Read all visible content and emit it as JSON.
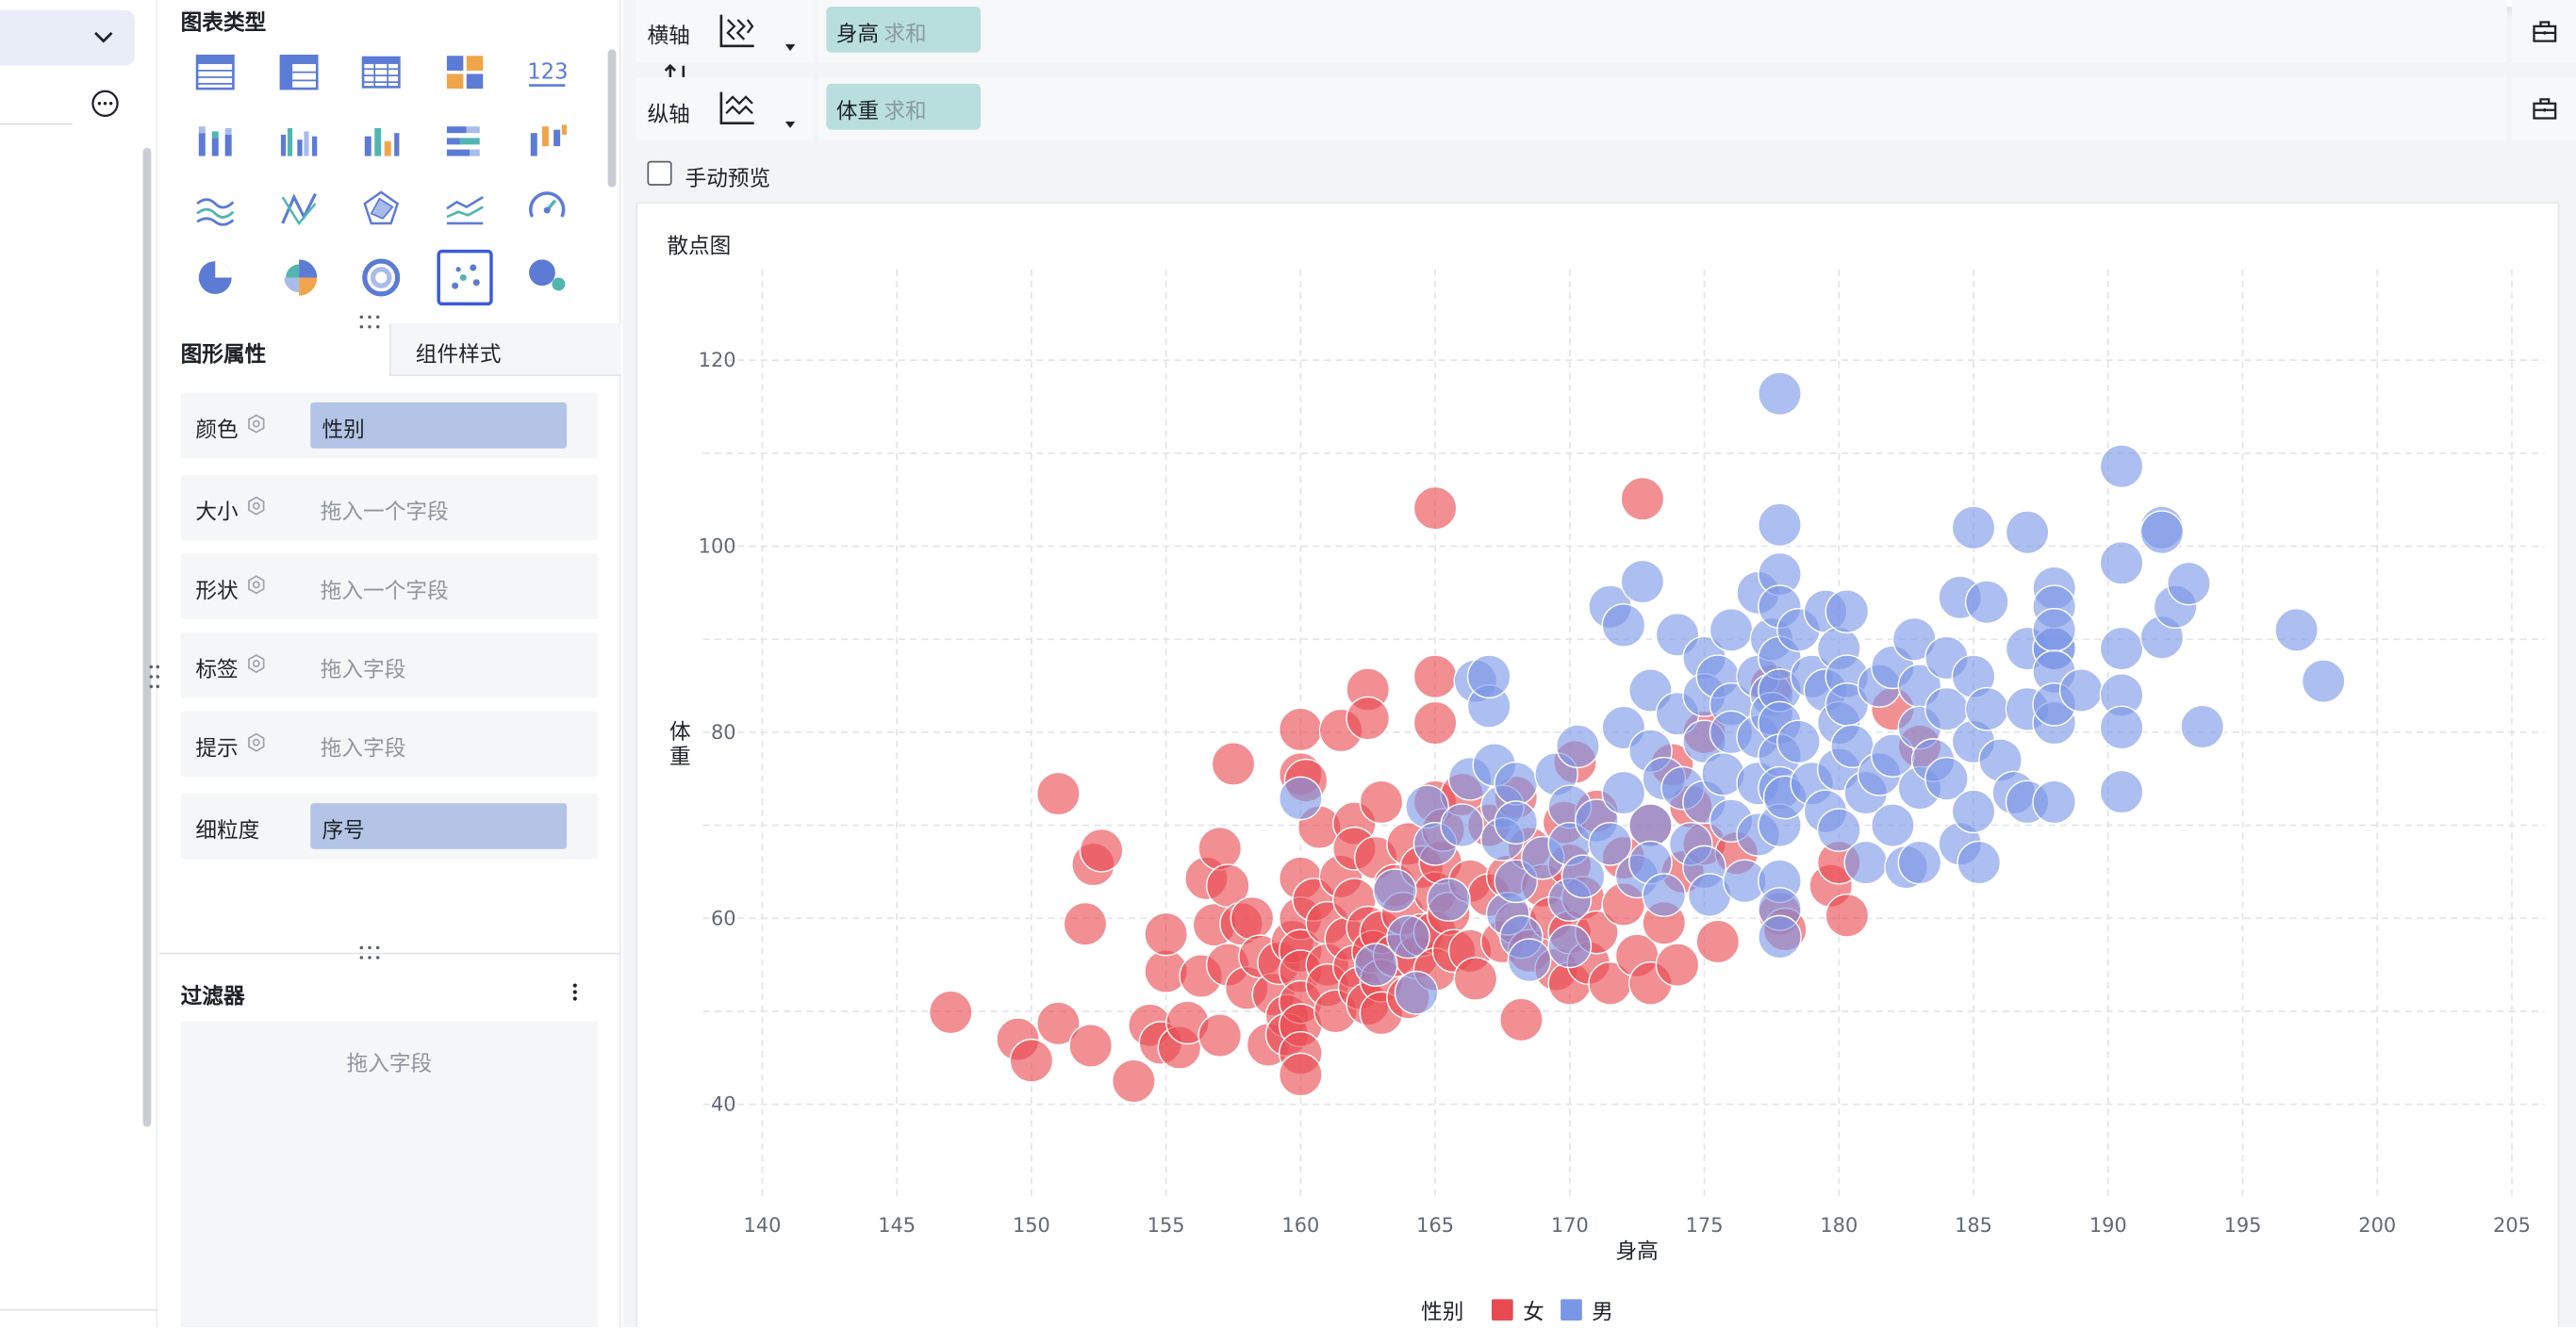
{
  "config": {
    "chart_types_title": "图表类型",
    "tab_shape": "图形属性",
    "tab_style": "组件样式",
    "props": [
      {
        "label": "颜色",
        "value": "性别"
      },
      {
        "label": "大小",
        "placeholder": "拖入一个字段"
      },
      {
        "label": "形状",
        "placeholder": "拖入一个字段"
      },
      {
        "label": "标签",
        "placeholder": "拖入字段"
      },
      {
        "label": "提示",
        "placeholder": "拖入字段"
      },
      {
        "label": "细粒度",
        "value": "序号"
      }
    ],
    "filter_title": "过滤器",
    "filter_placeholder": "拖入字段",
    "chart_type_icons": [
      "table-icon",
      "cross-table-icon",
      "detail-table-icon",
      "kpi-grid-icon",
      "number-123-icon",
      "stacked-column-icon",
      "grouped-column-icon",
      "column-icon",
      "stacked-bar-icon",
      "range-column-icon",
      "area-line-icon",
      "radar-line-icon",
      "radar-icon",
      "multi-line-icon",
      "gauge-icon",
      "pie-icon",
      "rose-pie-icon",
      "ring-icon",
      "scatter-icon",
      "bubble-icon"
    ]
  },
  "axes": {
    "x_label": "横轴",
    "y_label": "纵轴",
    "x_field": "身高",
    "x_agg": "求和",
    "y_field": "体重",
    "y_agg": "求和"
  },
  "preview_label": "手动预览",
  "colors": {
    "female": "#e84a51",
    "male": "#7b96e6",
    "accent": "#3b5bdb"
  },
  "chart_data": {
    "type": "scatter",
    "title": "散点图",
    "xlabel": "身高",
    "ylabel": "体重",
    "xlim": [
      140,
      205
    ],
    "ylim": [
      30,
      125
    ],
    "xticks": [
      140,
      145,
      150,
      155,
      160,
      165,
      170,
      175,
      180,
      185,
      190,
      195,
      200,
      205
    ],
    "yticks": [
      40,
      60,
      80,
      100,
      120
    ],
    "legend_title": "性别",
    "legend_position": "bottom",
    "grid": true,
    "series": [
      {
        "name": "女",
        "color": "#e84a51",
        "points": [
          [
            147.0,
            49.9
          ],
          [
            149.5,
            47.0
          ],
          [
            150.0,
            44.7
          ],
          [
            151.0,
            73.4
          ],
          [
            151.0,
            48.7
          ],
          [
            152.0,
            59.4
          ],
          [
            152.3,
            65.8
          ],
          [
            152.2,
            46.3
          ],
          [
            152.6,
            67.3
          ],
          [
            153.8,
            42.5
          ],
          [
            154.4,
            48.5
          ],
          [
            154.8,
            46.6
          ],
          [
            155.0,
            54.3
          ],
          [
            155.0,
            58.3
          ],
          [
            155.5,
            46.1
          ],
          [
            155.8,
            48.8
          ],
          [
            156.3,
            53.8
          ],
          [
            156.5,
            64.3
          ],
          [
            156.8,
            59.3
          ],
          [
            157.0,
            67.5
          ],
          [
            157.0,
            47.4
          ],
          [
            157.3,
            55.0
          ],
          [
            157.3,
            63.5
          ],
          [
            157.5,
            76.6
          ],
          [
            157.8,
            59.4
          ],
          [
            158.0,
            52.5
          ],
          [
            158.2,
            60.0
          ],
          [
            158.5,
            55.9
          ],
          [
            158.8,
            46.4
          ],
          [
            159.0,
            51.8
          ],
          [
            159.2,
            55.2
          ],
          [
            159.5,
            49.5
          ],
          [
            159.5,
            47.5
          ],
          [
            159.7,
            57.5
          ],
          [
            160.0,
            80.3
          ],
          [
            160.0,
            75.5
          ],
          [
            160.0,
            64.3
          ],
          [
            160.0,
            60.0
          ],
          [
            160.0,
            56.5
          ],
          [
            160.0,
            54.3
          ],
          [
            160.0,
            51.0
          ],
          [
            160.0,
            48.5
          ],
          [
            160.0,
            45.5
          ],
          [
            160.0,
            43.2
          ],
          [
            160.2,
            74.8
          ],
          [
            160.5,
            62.0
          ],
          [
            160.7,
            69.8
          ],
          [
            161.0,
            59.5
          ],
          [
            161.0,
            55.0
          ],
          [
            161.0,
            52.8
          ],
          [
            161.3,
            50.0
          ],
          [
            161.5,
            80.2
          ],
          [
            161.5,
            64.5
          ],
          [
            161.7,
            57.8
          ],
          [
            162.0,
            70.2
          ],
          [
            162.0,
            67.5
          ],
          [
            162.0,
            62.0
          ],
          [
            162.0,
            54.8
          ],
          [
            162.2,
            52.5
          ],
          [
            162.5,
            59.0
          ],
          [
            162.5,
            50.8
          ],
          [
            162.5,
            84.6
          ],
          [
            162.5,
            81.5
          ],
          [
            162.7,
            56.4
          ],
          [
            162.8,
            66.5
          ],
          [
            163.0,
            72.5
          ],
          [
            163.0,
            58.5
          ],
          [
            163.0,
            53.3
          ],
          [
            163.0,
            49.8
          ],
          [
            163.5,
            63.5
          ],
          [
            163.5,
            56.0
          ],
          [
            163.8,
            60.5
          ],
          [
            164.0,
            68.0
          ],
          [
            164.0,
            51.5
          ],
          [
            164.3,
            55.8
          ],
          [
            164.5,
            58.2
          ],
          [
            164.5,
            65.5
          ],
          [
            165.0,
            104.1
          ],
          [
            165.0,
            86.0
          ],
          [
            165.0,
            81.0
          ],
          [
            165.0,
            72.5
          ],
          [
            165.0,
            62.7
          ],
          [
            165.0,
            58.5
          ],
          [
            165.0,
            54.5
          ],
          [
            165.2,
            66.0
          ],
          [
            165.3,
            69.5
          ],
          [
            165.5,
            60.5
          ],
          [
            165.7,
            56.5
          ],
          [
            166.0,
            73.3
          ],
          [
            166.3,
            64.0
          ],
          [
            166.3,
            56.5
          ],
          [
            166.5,
            53.5
          ],
          [
            167.0,
            62.5
          ],
          [
            167.0,
            70.0
          ],
          [
            167.5,
            57.5
          ],
          [
            167.7,
            64.5
          ],
          [
            168.0,
            73.0
          ],
          [
            168.0,
            59.5
          ],
          [
            168.2,
            49.1
          ],
          [
            168.5,
            56.5
          ],
          [
            168.5,
            67.5
          ],
          [
            169.0,
            63.5
          ],
          [
            169.3,
            60.0
          ],
          [
            169.5,
            54.5
          ],
          [
            169.8,
            70.3
          ],
          [
            170.0,
            65.7
          ],
          [
            170.0,
            58.5
          ],
          [
            170.0,
            53.0
          ],
          [
            170.2,
            76.8
          ],
          [
            170.5,
            62.2
          ],
          [
            170.7,
            55.2
          ],
          [
            171.0,
            71.5
          ],
          [
            171.0,
            58.5
          ],
          [
            171.5,
            53.0
          ],
          [
            172.0,
            66.5
          ],
          [
            172.0,
            61.5
          ],
          [
            172.5,
            56.0
          ],
          [
            172.7,
            105.1
          ],
          [
            173.0,
            70.0
          ],
          [
            173.0,
            53.0
          ],
          [
            173.5,
            59.5
          ],
          [
            173.8,
            76.5
          ],
          [
            174.0,
            55.0
          ],
          [
            174.2,
            65.0
          ],
          [
            174.5,
            72.0
          ],
          [
            175.0,
            80.0
          ],
          [
            175.0,
            68.0
          ],
          [
            175.5,
            57.5
          ],
          [
            176.2,
            67.0
          ],
          [
            177.5,
            85.0
          ],
          [
            177.8,
            60.5
          ],
          [
            178.0,
            58.8
          ],
          [
            179.7,
            63.5
          ],
          [
            180.0,
            66.0
          ],
          [
            180.3,
            60.3
          ],
          [
            182.0,
            82.5
          ],
          [
            183.0,
            78.5
          ]
        ]
      },
      {
        "name": "男",
        "color": "#7b96e6",
        "points": [
          [
            160.0,
            72.9
          ],
          [
            162.8,
            55.0
          ],
          [
            163.5,
            63.0
          ],
          [
            164.0,
            58.0
          ],
          [
            164.3,
            52.0
          ],
          [
            164.7,
            72.0
          ],
          [
            165.0,
            68.0
          ],
          [
            165.5,
            62.0
          ],
          [
            166.0,
            70.0
          ],
          [
            166.3,
            75.0
          ],
          [
            166.5,
            85.5
          ],
          [
            167.0,
            82.8
          ],
          [
            167.0,
            86.0
          ],
          [
            167.2,
            76.5
          ],
          [
            167.5,
            72.0
          ],
          [
            167.5,
            68.5
          ],
          [
            167.7,
            60.5
          ],
          [
            168.0,
            74.5
          ],
          [
            168.0,
            70.3
          ],
          [
            168.0,
            64.0
          ],
          [
            168.2,
            58.0
          ],
          [
            168.5,
            55.5
          ],
          [
            169.0,
            66.5
          ],
          [
            169.5,
            75.5
          ],
          [
            170.0,
            72.0
          ],
          [
            170.0,
            68.0
          ],
          [
            170.0,
            62.0
          ],
          [
            170.0,
            57.0
          ],
          [
            170.3,
            78.5
          ],
          [
            170.5,
            64.5
          ],
          [
            171.0,
            70.5
          ],
          [
            171.5,
            68.0
          ],
          [
            171.5,
            93.5
          ],
          [
            172.0,
            91.5
          ],
          [
            172.0,
            80.5
          ],
          [
            172.0,
            73.5
          ],
          [
            172.5,
            64.5
          ],
          [
            172.7,
            96.2
          ],
          [
            173.0,
            84.5
          ],
          [
            173.0,
            78.0
          ],
          [
            173.0,
            70.0
          ],
          [
            173.0,
            66.0
          ],
          [
            173.5,
            75.0
          ],
          [
            173.5,
            62.5
          ],
          [
            174.0,
            90.5
          ],
          [
            174.0,
            82.0
          ],
          [
            174.2,
            74.0
          ],
          [
            174.5,
            68.0
          ],
          [
            175.0,
            88.0
          ],
          [
            175.0,
            84.0
          ],
          [
            175.0,
            79.0
          ],
          [
            175.0,
            72.5
          ],
          [
            175.0,
            65.5
          ],
          [
            175.2,
            62.5
          ],
          [
            175.5,
            86.0
          ],
          [
            175.7,
            75.5
          ],
          [
            176.0,
            91.0
          ],
          [
            176.0,
            83.0
          ],
          [
            176.0,
            80.0
          ],
          [
            176.0,
            70.5
          ],
          [
            176.5,
            64.0
          ],
          [
            177.0,
            95.0
          ],
          [
            177.0,
            86.0
          ],
          [
            177.0,
            79.5
          ],
          [
            177.0,
            74.5
          ],
          [
            177.0,
            69.0
          ],
          [
            177.5,
            90.0
          ],
          [
            177.5,
            84.0
          ],
          [
            177.5,
            82.0
          ],
          [
            177.8,
            116.4
          ],
          [
            177.8,
            102.3
          ],
          [
            177.8,
            97.0
          ],
          [
            177.8,
            93.5
          ],
          [
            177.8,
            88.0
          ],
          [
            177.8,
            84.5
          ],
          [
            177.8,
            81.0
          ],
          [
            177.8,
            77.5
          ],
          [
            177.8,
            74.0
          ],
          [
            177.8,
            70.0
          ],
          [
            177.8,
            64.0
          ],
          [
            177.8,
            61.0
          ],
          [
            177.8,
            58.0
          ],
          [
            178.0,
            73.0
          ],
          [
            178.5,
            91.0
          ],
          [
            178.5,
            79.0
          ],
          [
            179.0,
            86.0
          ],
          [
            179.0,
            74.5
          ],
          [
            179.5,
            93.0
          ],
          [
            179.5,
            84.5
          ],
          [
            179.5,
            71.5
          ],
          [
            180.0,
            89.0
          ],
          [
            180.0,
            81.0
          ],
          [
            180.0,
            76.0
          ],
          [
            180.0,
            69.5
          ],
          [
            180.3,
            93.0
          ],
          [
            180.3,
            86.0
          ],
          [
            180.3,
            83.0
          ],
          [
            180.5,
            78.5
          ],
          [
            181.0,
            73.5
          ],
          [
            181.0,
            66.0
          ],
          [
            181.5,
            85.0
          ],
          [
            181.5,
            75.5
          ],
          [
            182.0,
            87.0
          ],
          [
            182.0,
            77.5
          ],
          [
            182.0,
            70.0
          ],
          [
            182.5,
            65.5
          ],
          [
            182.8,
            90.0
          ],
          [
            183.0,
            85.0
          ],
          [
            183.0,
            80.5
          ],
          [
            183.0,
            74.0
          ],
          [
            183.0,
            66.0
          ],
          [
            183.5,
            77.0
          ],
          [
            184.0,
            88.0
          ],
          [
            184.0,
            82.5
          ],
          [
            184.0,
            75.0
          ],
          [
            184.5,
            94.5
          ],
          [
            184.5,
            68.0
          ],
          [
            185.0,
            102.0
          ],
          [
            185.0,
            86.0
          ],
          [
            185.0,
            79.0
          ],
          [
            185.0,
            71.5
          ],
          [
            185.2,
            66.0
          ],
          [
            185.5,
            94.0
          ],
          [
            185.5,
            82.5
          ],
          [
            186.0,
            77.0
          ],
          [
            186.5,
            73.5
          ],
          [
            187.0,
            101.5
          ],
          [
            187.0,
            89.0
          ],
          [
            187.0,
            82.5
          ],
          [
            187.0,
            72.5
          ],
          [
            188.0,
            95.5
          ],
          [
            188.0,
            89.0
          ],
          [
            188.0,
            81.0
          ],
          [
            188.0,
            72.5
          ],
          [
            188.0,
            89.0
          ],
          [
            188.0,
            93.5
          ],
          [
            188.0,
            91.0
          ],
          [
            188.0,
            86.5
          ],
          [
            188.0,
            83.0
          ],
          [
            189.0,
            84.5
          ],
          [
            190.5,
            108.6
          ],
          [
            190.5,
            98.2
          ],
          [
            190.5,
            89.0
          ],
          [
            190.5,
            84.0
          ],
          [
            190.5,
            80.5
          ],
          [
            190.5,
            73.6
          ],
          [
            192.0,
            102.0
          ],
          [
            192.0,
            101.5
          ],
          [
            192.0,
            90.2
          ],
          [
            192.5,
            93.5
          ],
          [
            193.0,
            96.0
          ],
          [
            193.5,
            80.6
          ],
          [
            197.0,
            91.0
          ],
          [
            198.0,
            85.5
          ]
        ]
      }
    ]
  }
}
